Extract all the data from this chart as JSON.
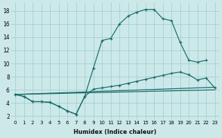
{
  "xlabel": "Humidex (Indice chaleur)",
  "background_color": "#cce8e8",
  "grid_color": "#99cccc",
  "line_color": "#1a6b6b",
  "xlim": [
    -0.5,
    23.5
  ],
  "ylim": [
    1.5,
    19.2
  ],
  "ytick_values": [
    2,
    4,
    6,
    8,
    10,
    12,
    14,
    16,
    18
  ],
  "line1_x": [
    0,
    1,
    2,
    3,
    4,
    5,
    6,
    7,
    8,
    9,
    10,
    11,
    12,
    13,
    14,
    15,
    16,
    17,
    18,
    19,
    20,
    21,
    22
  ],
  "line1_y": [
    5.3,
    5.0,
    4.2,
    4.2,
    4.1,
    3.5,
    2.8,
    2.3,
    5.0,
    9.3,
    13.5,
    13.8,
    16.0,
    17.2,
    17.8,
    18.2,
    18.2,
    16.8,
    16.5,
    13.2,
    10.5,
    10.2,
    10.5
  ],
  "line2_x": [
    0,
    1,
    2,
    3,
    4,
    5,
    6,
    7,
    8,
    9,
    10,
    11,
    12,
    13,
    14,
    15,
    16,
    17,
    18,
    19,
    20,
    21,
    22,
    23
  ],
  "line2_y": [
    5.3,
    5.0,
    4.2,
    4.2,
    4.1,
    3.5,
    2.8,
    2.3,
    5.0,
    6.1,
    6.3,
    6.5,
    6.7,
    7.0,
    7.3,
    7.6,
    7.9,
    8.2,
    8.5,
    8.7,
    8.3,
    7.5,
    7.8,
    6.3
  ],
  "line3_x": [
    0,
    23
  ],
  "line3_y": [
    5.3,
    6.4
  ],
  "line4_x": [
    0,
    23
  ],
  "line4_y": [
    5.3,
    6.0
  ]
}
